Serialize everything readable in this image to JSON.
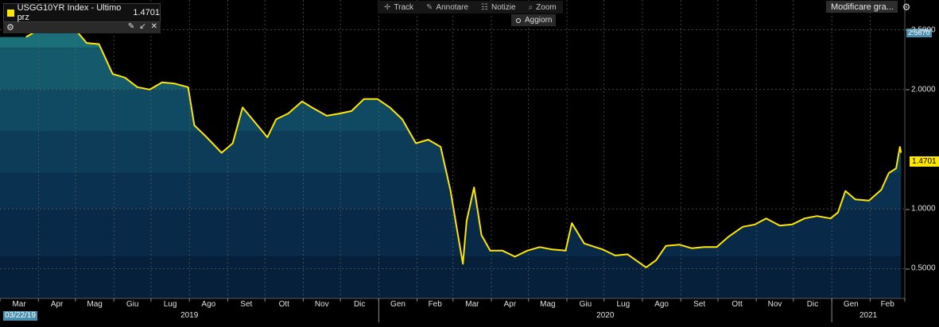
{
  "toolbar": {
    "track_label": "Track",
    "annotate_label": "Annotare",
    "news_label": "Notizie",
    "zoom_label": "Zoom",
    "refresh_label": "Aggiorn",
    "modify_label": "Modificare gra..."
  },
  "legend": {
    "title": "USGG10YR Index - Ultimo prz",
    "last_value": "1.4701",
    "color": "#ffe700"
  },
  "right_axis": {
    "ticks": [
      "2.5000",
      "2.0000",
      "1.0000",
      "0.5000"
    ],
    "last_value_label": "1.4701",
    "high_label": "2.5670"
  },
  "x_axis": {
    "months": [
      "Mar",
      "Apr",
      "Mag",
      "Giu",
      "Lug",
      "Ago",
      "Set",
      "Ott",
      "Nov",
      "Dic",
      "Gen",
      "Feb",
      "Mar",
      "Apr",
      "Mag",
      "Giu",
      "Lug",
      "Ago",
      "Set",
      "Ott",
      "Nov",
      "Dic",
      "Gen",
      "Feb"
    ],
    "years": [
      "2019",
      "2020",
      "2021"
    ],
    "start_date_label": "03/22/19"
  },
  "colors": {
    "line": "#ffe700",
    "background": "#000000",
    "accent": "#4a8fb0"
  },
  "chart_data": {
    "type": "area",
    "title": "USGG10YR Index - Ultimo prz 1.4701",
    "ylim": [
      0.25,
      2.75
    ],
    "x_range": [
      "2019-03-01",
      "2021-03-01"
    ],
    "grid": true,
    "legend_position": "top-left",
    "series": [
      {
        "name": "USGG10YR Index",
        "x": [
          "2019-03-22",
          "2019-04-01",
          "2019-04-10",
          "2019-04-20",
          "2019-05-01",
          "2019-05-10",
          "2019-05-20",
          "2019-05-31",
          "2019-06-10",
          "2019-06-20",
          "2019-06-30",
          "2019-07-10",
          "2019-07-20",
          "2019-07-31",
          "2019-08-05",
          "2019-08-15",
          "2019-08-27",
          "2019-09-05",
          "2019-09-13",
          "2019-09-25",
          "2019-10-03",
          "2019-10-10",
          "2019-10-20",
          "2019-10-31",
          "2019-11-08",
          "2019-11-20",
          "2019-12-01",
          "2019-12-10",
          "2019-12-20",
          "2019-12-31",
          "2020-01-10",
          "2020-01-20",
          "2020-01-31",
          "2020-02-10",
          "2020-02-20",
          "2020-02-28",
          "2020-03-03",
          "2020-03-09",
          "2020-03-12",
          "2020-03-18",
          "2020-03-24",
          "2020-03-31",
          "2020-04-10",
          "2020-04-20",
          "2020-04-30",
          "2020-05-10",
          "2020-05-20",
          "2020-05-31",
          "2020-06-05",
          "2020-06-15",
          "2020-06-30",
          "2020-07-10",
          "2020-07-20",
          "2020-08-04",
          "2020-08-12",
          "2020-08-20",
          "2020-08-31",
          "2020-09-10",
          "2020-09-20",
          "2020-09-30",
          "2020-10-10",
          "2020-10-21",
          "2020-10-31",
          "2020-11-09",
          "2020-11-20",
          "2020-11-30",
          "2020-12-10",
          "2020-12-20",
          "2020-12-31",
          "2021-01-06",
          "2021-01-12",
          "2021-01-20",
          "2021-01-31",
          "2021-02-10",
          "2021-02-16",
          "2021-02-22",
          "2021-02-25",
          "2021-02-26"
        ],
        "values": [
          2.44,
          2.5,
          2.56,
          2.56,
          2.5,
          2.39,
          2.38,
          2.13,
          2.1,
          2.02,
          2.0,
          2.06,
          2.05,
          2.02,
          1.7,
          1.6,
          1.47,
          1.55,
          1.85,
          1.7,
          1.6,
          1.75,
          1.8,
          1.9,
          1.85,
          1.78,
          1.8,
          1.82,
          1.92,
          1.92,
          1.85,
          1.75,
          1.55,
          1.58,
          1.52,
          1.15,
          0.9,
          0.54,
          0.9,
          1.18,
          0.78,
          0.65,
          0.65,
          0.6,
          0.65,
          0.68,
          0.66,
          0.65,
          0.88,
          0.71,
          0.66,
          0.61,
          0.62,
          0.51,
          0.57,
          0.69,
          0.7,
          0.67,
          0.68,
          0.68,
          0.77,
          0.85,
          0.87,
          0.92,
          0.86,
          0.87,
          0.92,
          0.94,
          0.92,
          0.97,
          1.15,
          1.08,
          1.07,
          1.16,
          1.3,
          1.34,
          1.52,
          1.47
        ]
      }
    ]
  }
}
